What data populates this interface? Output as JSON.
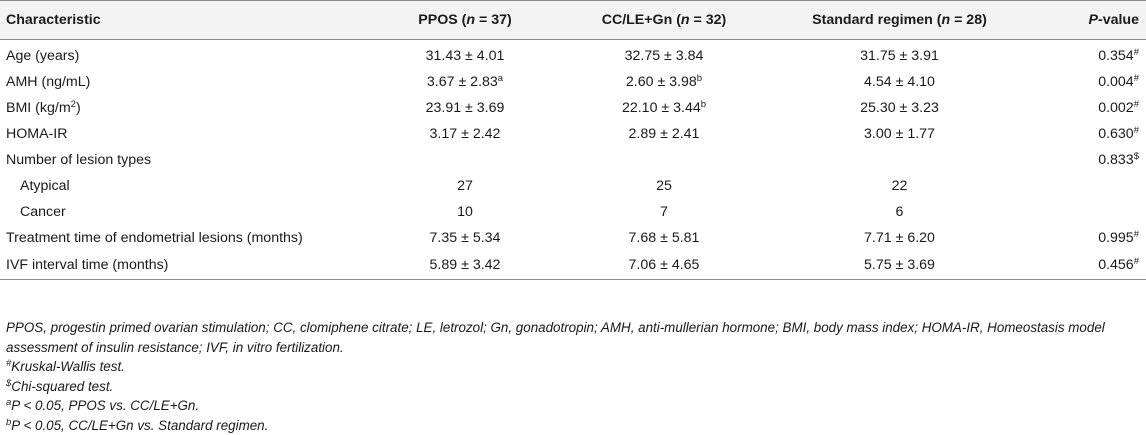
{
  "header": {
    "characteristic": "Characteristic",
    "ppos_name": "PPOS (",
    "ppos_n": "n",
    "ppos_count": " = 37)",
    "cc_name": "CC/LE+Gn (",
    "cc_n": "n",
    "cc_count": " = 32)",
    "std_name": "Standard regimen (",
    "std_n": "n",
    "std_count": " = 28)",
    "p_italic": "P",
    "p_rest": "-value"
  },
  "rows": [
    {
      "label": "Age (years)",
      "ppos": "31.43 ± 4.01",
      "cc": "32.75 ± 3.84",
      "std": "31.75 ± 3.91",
      "p": "0.354",
      "p_mark": "#"
    },
    {
      "label": "AMH (ng/mL)",
      "ppos": "3.67 ± 2.83",
      "ppos_mark": "a",
      "cc": "2.60 ± 3.98",
      "cc_mark": "b",
      "std": "4.54 ± 4.10",
      "p": "0.004",
      "p_mark": "#"
    },
    {
      "label": "BMI (kg/m",
      "label_sup": "2",
      "label_end": ")",
      "ppos": "23.91 ± 3.69",
      "cc": "22.10 ± 3.44",
      "cc_mark": "b",
      "std": "25.30 ± 3.23",
      "p": "0.002",
      "p_mark": "#"
    },
    {
      "label": "HOMA-IR",
      "ppos": "3.17 ± 2.42",
      "cc": "2.89 ± 2.41",
      "std": "3.00 ± 1.77",
      "p": "0.630",
      "p_mark": "#"
    },
    {
      "label": "Number of lesion types",
      "p": "0.833",
      "p_mark": "$"
    },
    {
      "label": "Atypical",
      "ppos": "27",
      "cc": "25",
      "std": "22"
    },
    {
      "label": "Cancer",
      "ppos": "10",
      "cc": "7",
      "std": "6"
    },
    {
      "label": "Treatment time of endometrial lesions (months)",
      "ppos": "7.35 ± 5.34",
      "cc": "7.68 ± 5.81",
      "std": "7.71 ± 6.20",
      "p": "0.995",
      "p_mark": "#"
    },
    {
      "label": "IVF interval time (months)",
      "ppos": "5.89 ± 3.42",
      "cc": "7.06 ± 4.65",
      "std": "5.75 ± 3.69",
      "p": "0.456",
      "p_mark": "#"
    }
  ],
  "footnotes": {
    "abbreviations": "PPOS, progestin primed ovarian stimulation; CC, clomiphene citrate; LE, letrozol; Gn, gonadotropin; AMH, anti-mullerian hormone; BMI, body mass index; HOMA-IR, Homeostasis model assessment of insulin resistance; IVF, in vitro fertilization.",
    "kw_mark": "#",
    "kw_text": "Kruskal-Wallis test.",
    "chi_mark": "$",
    "chi_text": "Chi-squared test.",
    "a_mark": "a",
    "a_text": "P < 0.05, PPOS vs. CC/LE+Gn.",
    "b_mark": "b",
    "b_text": "P < 0.05, CC/LE+Gn vs. Standard regimen."
  }
}
